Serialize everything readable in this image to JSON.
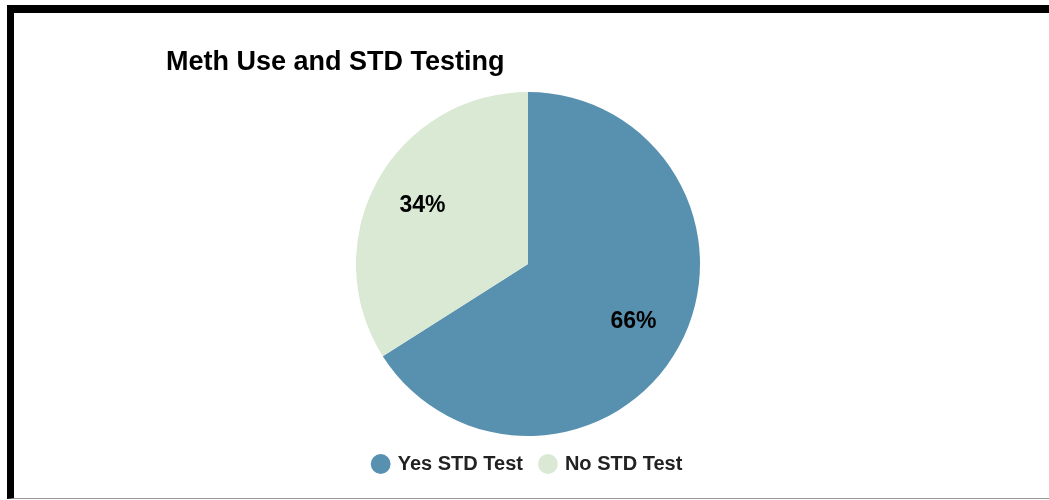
{
  "chart_data": {
    "type": "pie",
    "title": "Meth Use and STD Testing",
    "categories": [
      "Yes STD Test",
      "No STD Test"
    ],
    "values": [
      66,
      34
    ],
    "colors": [
      "#5891af",
      "#d9e9d3"
    ],
    "value_labels": [
      "66%",
      "34%"
    ],
    "legend": "bottom"
  }
}
